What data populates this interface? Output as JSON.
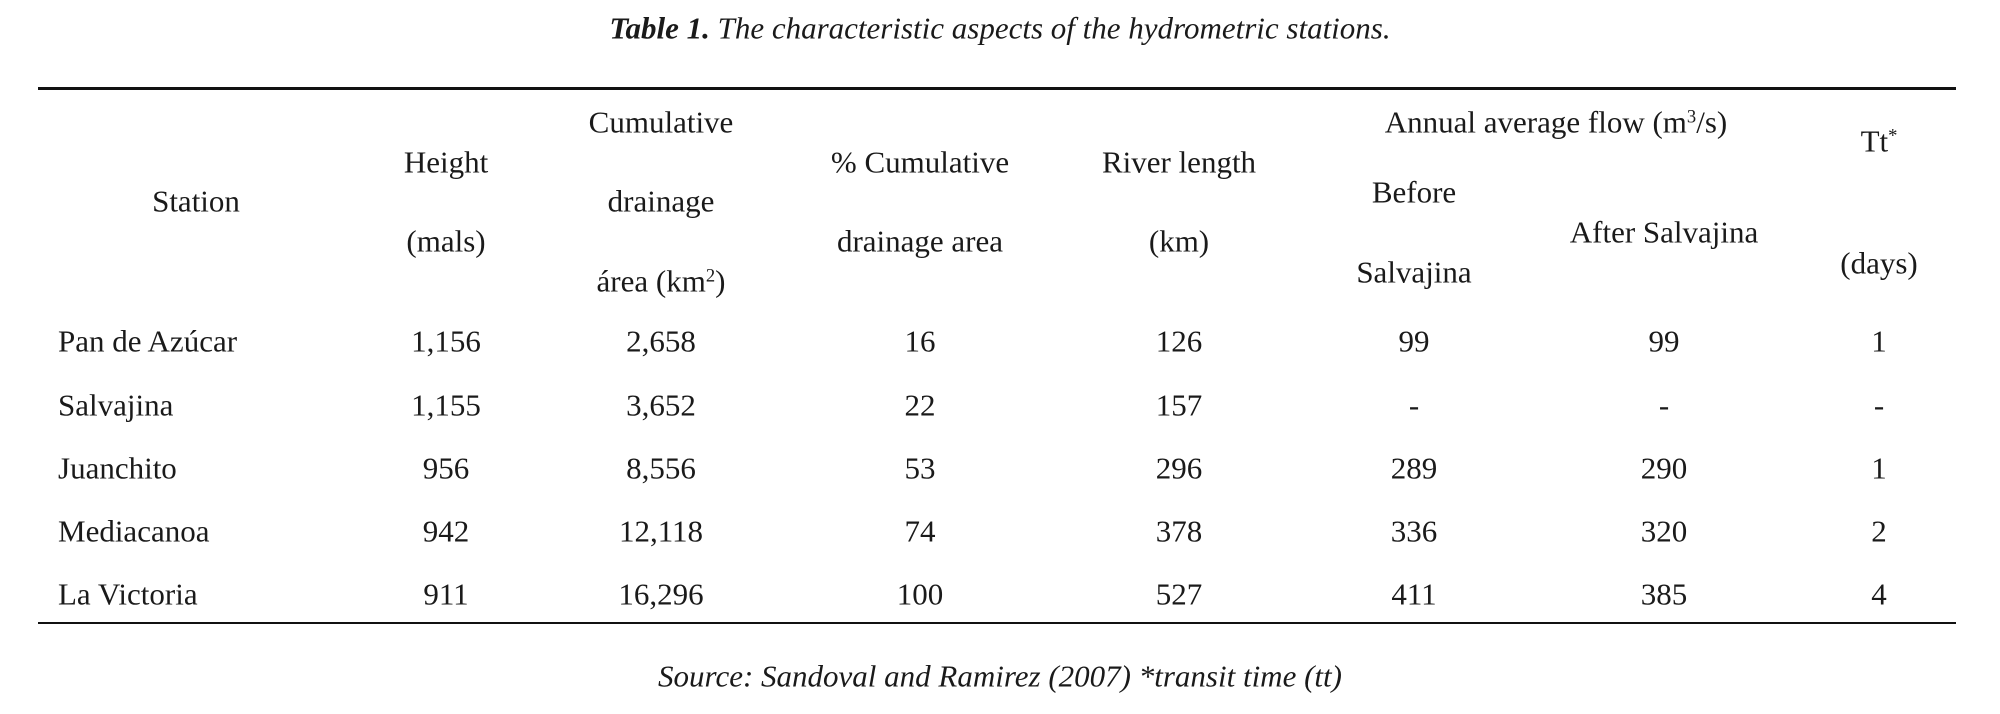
{
  "title": {
    "label": "Table 1.",
    "text": "The characteristic aspects of the hydrometric stations."
  },
  "headers": {
    "station": "Station",
    "height": [
      "Height",
      "(mals)"
    ],
    "cum_area": [
      "Cumulative",
      "drainage",
      "área (km",
      "2",
      ")"
    ],
    "pct_area": [
      "% Cumulative",
      "drainage area"
    ],
    "river_length": [
      "River length",
      "(km)"
    ],
    "flow_group": [
      "Annual average flow (m",
      "3",
      "/s)"
    ],
    "before": [
      "Before",
      "Salvajina"
    ],
    "after": "After Salvajina",
    "tt": [
      "Tt",
      "*",
      "(days)"
    ]
  },
  "rows": [
    [
      "Pan de Azúcar",
      "1,156",
      "2,658",
      "16",
      "126",
      "99",
      "99",
      "1"
    ],
    [
      "Salvajina",
      "1,155",
      "3,652",
      "22",
      "157",
      "-",
      "-",
      "-"
    ],
    [
      "Juanchito",
      "956",
      "8,556",
      "53",
      "296",
      "289",
      "290",
      "1"
    ],
    [
      "Mediacanoa",
      "942",
      "12,118",
      "74",
      "378",
      "336",
      "320",
      "2"
    ],
    [
      "La Victoria",
      "911",
      "16,296",
      "100",
      "527",
      "411",
      "385",
      "4"
    ]
  ],
  "source": "Source: Sandoval and Ramirez (2007) *transit time (tt)"
}
